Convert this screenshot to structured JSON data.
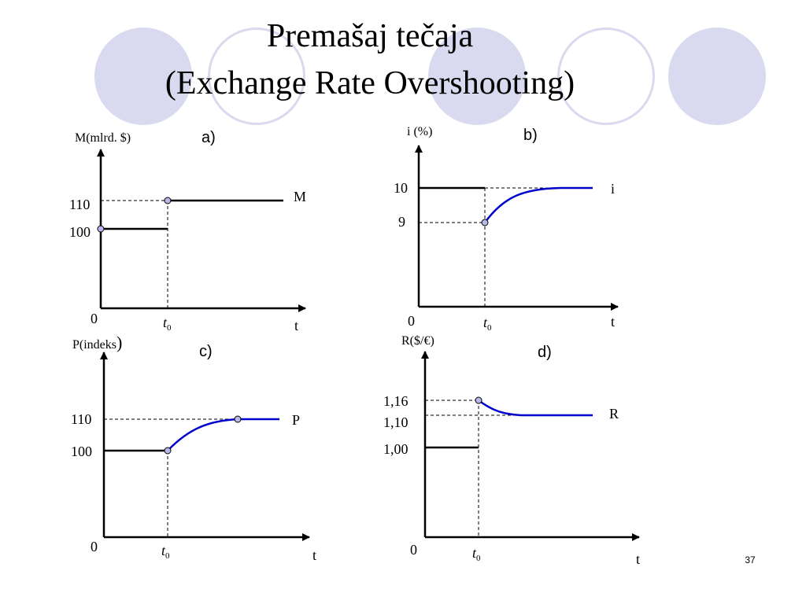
{
  "title": {
    "line1": "Premašaj tečaja",
    "line2": "(Exchange Rate Overshooting)"
  },
  "colors": {
    "decor": "#d9d9ef",
    "axis": "#000000",
    "path": "#0000cc",
    "point_fill": "#b8b8e8"
  },
  "panels": {
    "a": {
      "label": "a)",
      "y_axis_label": "M(mlrd. $)",
      "origin_label": "0",
      "x_axis_label": "t",
      "t0_label": "t",
      "t0_sub": "0",
      "y_ticks": [
        "110",
        "100"
      ],
      "curve_label": "M",
      "values": {
        "before": 100,
        "after": 110
      }
    },
    "b": {
      "label": "b)",
      "y_axis_label": "i (%)",
      "origin_label": "0",
      "x_axis_label": "t",
      "t0_label": "t",
      "t0_sub": "0",
      "y_ticks": [
        "10",
        "9"
      ],
      "curve_label": "i",
      "values": {
        "before": 10,
        "at_t0": 9,
        "long_run": 10
      }
    },
    "c": {
      "label": "c)",
      "y_axis_label": "P(indeks",
      "y_axis_paren": ")",
      "origin_label": "0",
      "x_axis_label": "t",
      "t0_label": "t",
      "t0_sub": "0",
      "y_ticks": [
        "110",
        "100"
      ],
      "curve_label": "P",
      "values": {
        "before": 100,
        "long_run": 110
      }
    },
    "d": {
      "label": "d)",
      "y_axis_label": "R($/€)",
      "origin_label": "0",
      "x_axis_label": "t",
      "t0_label": "t",
      "t0_sub": "0",
      "y_ticks": [
        "1,16",
        "1,10",
        "1,00"
      ],
      "curve_label": "R",
      "values": {
        "before": 1.0,
        "at_t0": 1.16,
        "long_run": 1.1
      }
    }
  },
  "slide_number": "37"
}
